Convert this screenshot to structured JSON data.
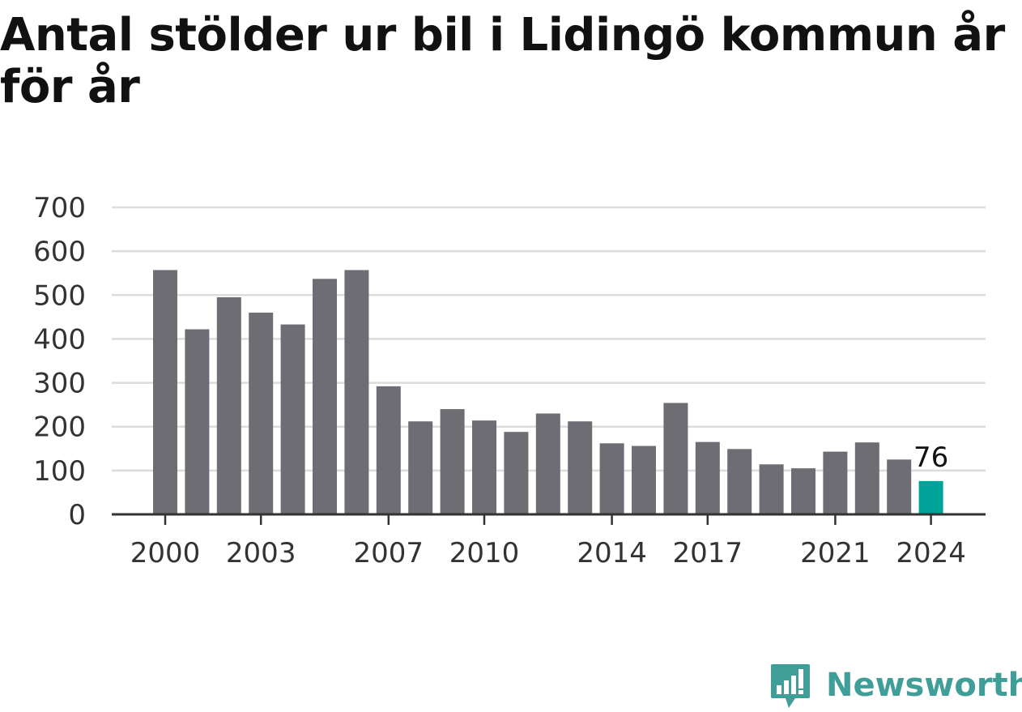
{
  "brand": {
    "name": "Newsworthy",
    "accent_color": "#3f9f98"
  },
  "chart_data": {
    "type": "bar",
    "title": "Antal stölder ur bil i Lidingö kommun år för år",
    "xlabel": "",
    "ylabel": "",
    "categories": [
      "2000",
      "2001",
      "2002",
      "2003",
      "2004",
      "2005",
      "2006",
      "2007",
      "2008",
      "2009",
      "2010",
      "2011",
      "2012",
      "2013",
      "2014",
      "2015",
      "2016",
      "2017",
      "2018",
      "2019",
      "2020",
      "2021",
      "2022",
      "2023",
      "2024"
    ],
    "values": [
      557,
      422,
      495,
      460,
      433,
      537,
      557,
      292,
      212,
      240,
      214,
      188,
      230,
      212,
      162,
      156,
      254,
      165,
      149,
      114,
      105,
      143,
      164,
      125,
      76
    ],
    "ylim": [
      0,
      700
    ],
    "yticks": [
      0,
      100,
      200,
      300,
      400,
      500,
      600,
      700
    ],
    "xtick_labels": [
      "2000",
      "2003",
      "2007",
      "2010",
      "2014",
      "2017",
      "2021",
      "2024"
    ],
    "highlight": {
      "category": "2024",
      "label": "76"
    },
    "colors": {
      "bar": "#6e6d73",
      "highlight": "#00a39a",
      "grid": "#dcdcdc",
      "axis": "#333333"
    },
    "grid": true,
    "legend": "none"
  }
}
